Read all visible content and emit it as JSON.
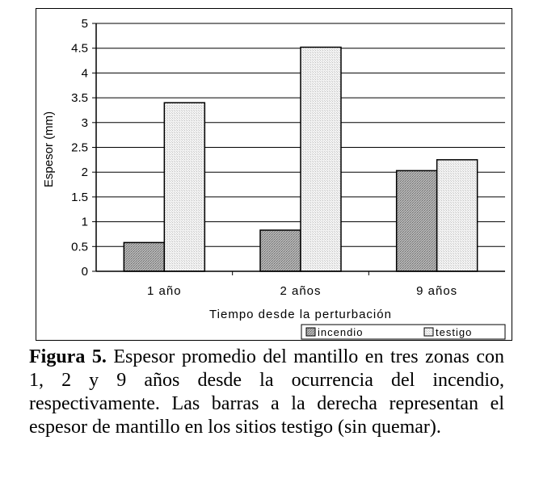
{
  "chart_data": {
    "type": "bar",
    "title": "",
    "xlabel": "Tiempo desde la perturbación",
    "ylabel": "Espesor (mm)",
    "categories": [
      "1 año",
      "2 años",
      "9 años"
    ],
    "series": [
      {
        "name": "incendio",
        "values": [
          0.58,
          0.83,
          2.03
        ]
      },
      {
        "name": "testigo",
        "values": [
          3.4,
          4.52,
          2.25
        ]
      }
    ],
    "ylim": [
      0,
      5
    ],
    "yticks": [
      "0",
      "0.5",
      "1",
      "1.5",
      "2",
      "2.5",
      "3",
      "3.5",
      "4",
      "4.5",
      "5"
    ],
    "grid": true,
    "legend_position": "bottom-right"
  },
  "caption": {
    "label": "Figura 5.",
    "text": "Espesor promedio del mantillo en tres zonas con 1, 2 y 9 años desde la ocurrencia del incendio, respectivamente. Las barras a la derecha representan el espesor de mantillo en los sitios testigo (sin quemar)."
  }
}
